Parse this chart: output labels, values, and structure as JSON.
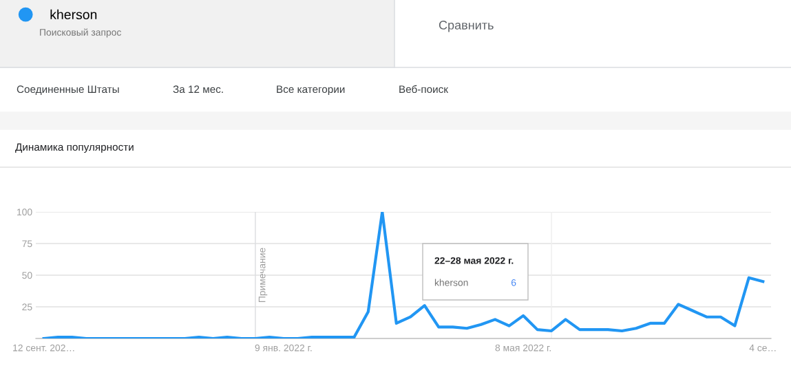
{
  "chart_data": {
    "type": "line",
    "title": "Динамика популярности",
    "x": [
      "2021-09-12",
      "2021-09-19",
      "2021-09-26",
      "2021-10-03",
      "2021-10-10",
      "2021-10-17",
      "2021-10-24",
      "2021-10-31",
      "2021-11-07",
      "2021-11-14",
      "2021-11-21",
      "2021-11-28",
      "2021-12-05",
      "2021-12-12",
      "2021-12-19",
      "2021-12-26",
      "2022-01-02",
      "2022-01-09",
      "2022-01-16",
      "2022-01-23",
      "2022-01-30",
      "2022-02-06",
      "2022-02-13",
      "2022-02-20",
      "2022-02-27",
      "2022-03-06",
      "2022-03-13",
      "2022-03-20",
      "2022-03-27",
      "2022-04-03",
      "2022-04-10",
      "2022-04-17",
      "2022-04-24",
      "2022-05-01",
      "2022-05-08",
      "2022-05-15",
      "2022-05-22",
      "2022-05-29",
      "2022-06-05",
      "2022-06-12",
      "2022-06-19",
      "2022-06-26",
      "2022-07-03",
      "2022-07-10",
      "2022-07-17",
      "2022-07-24",
      "2022-07-31",
      "2022-08-07",
      "2022-08-14",
      "2022-08-21",
      "2022-08-28",
      "2022-09-04"
    ],
    "series": [
      {
        "name": "kherson",
        "color": "#2196f3",
        "values": [
          0,
          1,
          1,
          0,
          0,
          0,
          0,
          0,
          0,
          0,
          0,
          1,
          0,
          1,
          0,
          0,
          1,
          0,
          0,
          1,
          1,
          1,
          1,
          21,
          100,
          12,
          17,
          26,
          9,
          9,
          8,
          11,
          15,
          10,
          18,
          7,
          6,
          15,
          7,
          7,
          7,
          6,
          8,
          12,
          12,
          27,
          22,
          17,
          17,
          10,
          48,
          45
        ]
      }
    ],
    "xlim": [
      "2021-09-08",
      "2022-09-08"
    ],
    "xticks": [
      {
        "value": "2021-09-12",
        "label": "12 сент. 202…"
      },
      {
        "value": "2022-01-09",
        "label": "9 янв. 2022 г."
      },
      {
        "value": "2022-05-08",
        "label": "8 мая 2022 г."
      },
      {
        "value": "2022-09-04",
        "label": "4 се…"
      }
    ],
    "ylim": [
      0,
      100
    ],
    "yticks": [
      25,
      50,
      75,
      100
    ],
    "grid": "y",
    "legend": "top left",
    "marker": "none",
    "line_style": "solid",
    "ref_lines": [
      {
        "axis": "x",
        "value": "2021-12-26",
        "label": "Примечание",
        "color": "#dadce0"
      },
      {
        "axis": "x",
        "value": "2022-05-22",
        "label": null,
        "color": "#eeeeee"
      }
    ],
    "subtitle": "Поисковый запрос",
    "annotations": [
      "Сравнить",
      "Соединенные Штаты",
      "За 12 мес.",
      "Все категории",
      "Веб-поиск",
      "22–28 мая 2022 г.",
      "kherson",
      "6"
    ]
  }
}
